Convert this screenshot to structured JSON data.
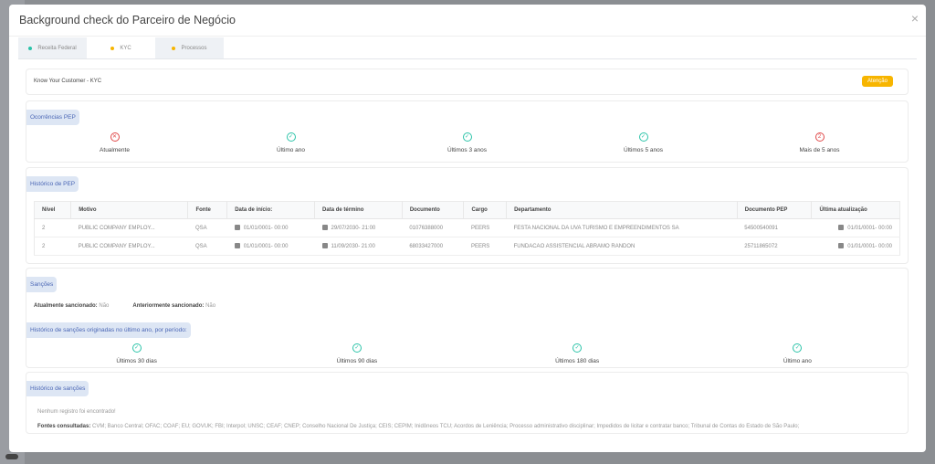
{
  "modal": {
    "title": "Background check do Parceiro de Negócio",
    "close": "×"
  },
  "tabs": [
    {
      "label": "Receita Federal",
      "color": "#2ac3a8"
    },
    {
      "label": "KYC",
      "color": "#f7b500"
    },
    {
      "label": "Processos",
      "color": "#f7b500"
    }
  ],
  "kyc": {
    "label": "Know Your Customer - KYC",
    "status": "Atenção"
  },
  "pep": {
    "title": "Ocorrências PEP",
    "items": [
      {
        "label": "Atualmente",
        "icon": "x-circle",
        "mark": "✕"
      },
      {
        "label": "Último ano",
        "icon": "check-circle",
        "mark": "✓"
      },
      {
        "label": "Últimos 3 anos",
        "icon": "check-circle",
        "mark": "✓"
      },
      {
        "label": "Últimos 5 anos",
        "icon": "check-circle",
        "mark": "✓"
      },
      {
        "label": "Mais de 5 anos",
        "icon": "count-circle",
        "mark": "2"
      }
    ]
  },
  "pep_history": {
    "title": "Histórico de PEP",
    "columns": [
      "Nível",
      "Motivo",
      "Fonte",
      "Data de início:",
      "Data de término",
      "Documento",
      "Cargo",
      "Departamento",
      "Documento PEP",
      "Última atualização"
    ],
    "rows": [
      [
        "2",
        "PUBLIC COMPANY EMPLOY...",
        "QSA",
        "01/01/0001- 00:00",
        "29/07/2030- 21:00",
        "01076388000",
        "PEERS",
        "FESTA NACIONAL DA UVA TURISMO E EMPREENDIMENTOS SA",
        "54500540091",
        "01/01/0001- 00:00"
      ],
      [
        "2",
        "PUBLIC COMPANY EMPLOY...",
        "QSA",
        "01/01/0001- 00:00",
        "11/09/2030- 21:00",
        "68033427000",
        "PEERS",
        "FUNDACAO ASSISTENCIAL ABRAMO RANDON",
        "25711865072",
        "01/01/0001- 00:00"
      ]
    ]
  },
  "sanctions": {
    "title": "Sanções",
    "current_label": "Atualmente sancionado:",
    "current_value": "Não",
    "previous_label": "Anteriormente sancionado:",
    "previous_value": "Não",
    "period_title": "Histórico de sanções originadas no último ano, por período:",
    "periods": [
      "Últimos 30 dias",
      "Últimos 90 dias",
      "Últimos 180 dias",
      "Último ano"
    ]
  },
  "sanction_history": {
    "title": "Histórico de sanções",
    "empty": "Nenhum registro foi encontrado!",
    "sources_label": "Fontes consultadas:",
    "sources": "CVM; Banco Central; OFAC; COAF; EU; GOVUK; FBI; Interpol; UNSC; CEAF; CNEP; Conselho Nacional De Justiça; CEIS; CEPIM; Inidôneos TCU; Acordos de Leniência; Processo administrativo disciplinar; Impedidos de licitar e contratar banco; Tribunal de Contas do Estado de São Paulo;"
  }
}
